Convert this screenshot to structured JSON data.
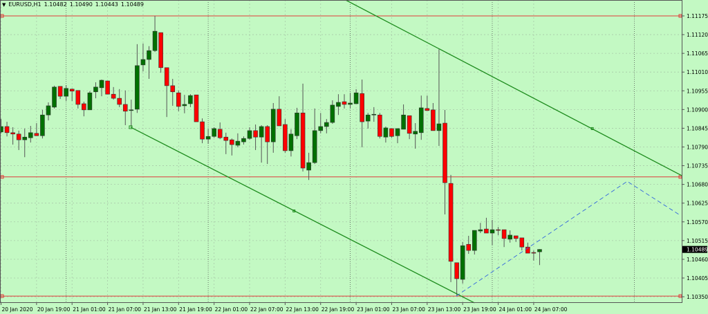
{
  "header": {
    "symbol": "EURUSD,H1",
    "open": "1.10482",
    "high": "1.10490",
    "low": "1.10443",
    "close": "1.10489"
  },
  "colors": {
    "background": "#c3f9c3",
    "bull": "#007000",
    "bear": "#ff0000",
    "trendline": "#1e8c1e",
    "hline": "#e03a3a",
    "projection": "#3366dd",
    "grid": "#a9c9a9"
  },
  "chart_data": {
    "type": "candlestick",
    "title": "",
    "ylim": [
      1.10322,
      1.11222
    ],
    "grid": true,
    "price_ticks": [
      "1.11175",
      "1.11120",
      "1.11065",
      "1.11010",
      "1.10955",
      "1.10900",
      "1.10845",
      "1.10790",
      "1.10735",
      "1.10680",
      "1.10625",
      "1.10570",
      "1.10515",
      "1.10460",
      "1.10405",
      "1.10350"
    ],
    "current_price": "1.10489",
    "time_labels": [
      "20 Jan 2020",
      "20 Jan 19:00",
      "21 Jan 01:00",
      "21 Jan 07:00",
      "21 Jan 13:00",
      "21 Jan 19:00",
      "22 Jan 01:00",
      "22 Jan 07:00",
      "22 Jan 13:00",
      "22 Jan 19:00",
      "23 Jan 01:00",
      "23 Jan 07:00",
      "23 Jan 13:00",
      "23 Jan 19:00",
      "24 Jan 01:00",
      "24 Jan 07:00"
    ],
    "candles_ohlc": [
      [
        1.10834,
        1.10872,
        1.1083,
        1.1085
      ],
      [
        1.1085,
        1.10864,
        1.10821,
        1.10832
      ],
      [
        1.10832,
        1.10848,
        1.10797,
        1.10828
      ],
      [
        1.10828,
        1.10838,
        1.10781,
        1.10811
      ],
      [
        1.10811,
        1.10844,
        1.1076,
        1.10819
      ],
      [
        1.10817,
        1.10852,
        1.10803,
        1.10832
      ],
      [
        1.1083,
        1.1086,
        1.10823,
        1.10823
      ],
      [
        1.10823,
        1.10899,
        1.10815,
        1.10884
      ],
      [
        1.10884,
        1.10921,
        1.10868,
        1.10911
      ],
      [
        1.10907,
        1.1097,
        1.10903,
        1.10966
      ],
      [
        1.10968,
        1.10968,
        1.10931,
        1.10939
      ],
      [
        1.10939,
        1.10972,
        1.10925,
        1.10962
      ],
      [
        1.1096,
        1.10962,
        1.10925,
        1.10954
      ],
      [
        1.10956,
        1.10956,
        1.10903,
        1.10915
      ],
      [
        1.10917,
        1.10923,
        1.1088,
        1.10899
      ],
      [
        1.10899,
        1.10954,
        1.10899,
        1.10949
      ],
      [
        1.10952,
        1.1098,
        1.10933,
        1.10966
      ],
      [
        1.10964,
        1.10988,
        1.10939,
        1.10986
      ],
      [
        1.10984,
        1.10984,
        1.10945,
        1.10945
      ],
      [
        1.10945,
        1.10966,
        1.10929,
        1.10933
      ],
      [
        1.10933,
        1.1096,
        1.10907,
        1.10915
      ],
      [
        1.10915,
        1.10956,
        1.10854,
        1.10895
      ],
      [
        1.10897,
        1.10929,
        1.1085,
        1.10899
      ],
      [
        1.10901,
        1.11092,
        1.1089,
        1.11029
      ],
      [
        1.11031,
        1.11094,
        1.11012,
        1.11047
      ],
      [
        1.11047,
        1.11086,
        1.1099,
        1.11073
      ],
      [
        1.11073,
        1.11175,
        1.11069,
        1.1113
      ],
      [
        1.11126,
        1.11126,
        1.11008,
        1.11023
      ],
      [
        1.11023,
        1.11023,
        1.10878,
        1.1097
      ],
      [
        1.1097,
        1.1099,
        1.10911,
        1.10952
      ],
      [
        1.10949,
        1.10956,
        1.10895,
        1.10909
      ],
      [
        1.10911,
        1.10943,
        1.10889,
        1.10915
      ],
      [
        1.10917,
        1.10945,
        1.10907,
        1.10941
      ],
      [
        1.10943,
        1.10943,
        1.10864,
        1.10864
      ],
      [
        1.10864,
        1.10874,
        1.10801,
        1.10813
      ],
      [
        1.10813,
        1.10842,
        1.10799,
        1.10821
      ],
      [
        1.10821,
        1.10848,
        1.10817,
        1.10844
      ],
      [
        1.10842,
        1.10862,
        1.10813,
        1.10817
      ],
      [
        1.10819,
        1.10832,
        1.10769,
        1.10809
      ],
      [
        1.10811,
        1.10815,
        1.10765,
        1.10797
      ],
      [
        1.10795,
        1.1083,
        1.10789,
        1.10807
      ],
      [
        1.10805,
        1.10821,
        1.10797,
        1.10815
      ],
      [
        1.10815,
        1.10848,
        1.10811,
        1.10838
      ],
      [
        1.10838,
        1.10856,
        1.10781,
        1.10819
      ],
      [
        1.10819,
        1.10854,
        1.10744,
        1.1085
      ],
      [
        1.1085,
        1.10854,
        1.1074,
        1.10805
      ],
      [
        1.10805,
        1.10919,
        1.10773,
        1.10901
      ],
      [
        1.10901,
        1.10939,
        1.10852,
        1.10852
      ],
      [
        1.10856,
        1.10872,
        1.10773,
        1.10779
      ],
      [
        1.10779,
        1.10842,
        1.10762,
        1.10828
      ],
      [
        1.10823,
        1.10905,
        1.10813,
        1.1089
      ],
      [
        1.1089,
        1.10976,
        1.10718,
        1.10728
      ],
      [
        1.10722,
        1.10773,
        1.10693,
        1.10744
      ],
      [
        1.10744,
        1.10903,
        1.1074,
        1.10838
      ],
      [
        1.10838,
        1.1089,
        1.1083,
        1.1085
      ],
      [
        1.1085,
        1.10872,
        1.1083,
        1.10862
      ],
      [
        1.10862,
        1.10927,
        1.10858,
        1.10913
      ],
      [
        1.10909,
        1.10945,
        1.10884,
        1.10921
      ],
      [
        1.10923,
        1.10945,
        1.10903,
        1.10915
      ],
      [
        1.10915,
        1.10949,
        1.10903,
        1.10919
      ],
      [
        1.10917,
        1.1096,
        1.10917,
        1.10949
      ],
      [
        1.10947,
        1.10988,
        1.10789,
        1.10864
      ],
      [
        1.10866,
        1.1089,
        1.10844,
        1.10884
      ],
      [
        1.10884,
        1.10907,
        1.10864,
        1.10886
      ],
      [
        1.10884,
        1.1089,
        1.10815,
        1.10821
      ],
      [
        1.10819,
        1.1085,
        1.10803,
        1.10846
      ],
      [
        1.10844,
        1.10844,
        1.10817,
        1.10821
      ],
      [
        1.10823,
        1.10844,
        1.10801,
        1.10844
      ],
      [
        1.10842,
        1.10915,
        1.10842,
        1.10884
      ],
      [
        1.10882,
        1.10882,
        1.10813,
        1.1083
      ],
      [
        1.10828,
        1.1086,
        1.10785,
        1.10836
      ],
      [
        1.10832,
        1.10941,
        1.10811,
        1.10905
      ],
      [
        1.10903,
        1.10941,
        1.10897,
        1.10897
      ],
      [
        1.10899,
        1.10919,
        1.10838,
        1.10838
      ],
      [
        1.10838,
        1.11077,
        1.10793,
        1.10858
      ],
      [
        1.1086,
        1.10899,
        1.10592,
        1.10685
      ],
      [
        1.10683,
        1.10708,
        1.10393,
        1.10454
      ],
      [
        1.1045,
        1.1045,
        1.10354,
        1.10403
      ],
      [
        1.10401,
        1.10511,
        1.10389,
        1.105
      ],
      [
        1.10504,
        1.10529,
        1.10476,
        1.10486
      ],
      [
        1.10486,
        1.10545,
        1.10474,
        1.10545
      ],
      [
        1.10543,
        1.10567,
        1.10537,
        1.10547
      ],
      [
        1.10549,
        1.10582,
        1.10537,
        1.10537
      ],
      [
        1.10537,
        1.10576,
        1.10502,
        1.10547
      ],
      [
        1.10547,
        1.10555,
        1.10531,
        1.10545
      ],
      [
        1.10547,
        1.10547,
        1.10496,
        1.10521
      ],
      [
        1.10519,
        1.10545,
        1.10509,
        1.10531
      ],
      [
        1.10529,
        1.10529,
        1.10511,
        1.10521
      ],
      [
        1.10523,
        1.10523,
        1.10486,
        1.10496
      ],
      [
        1.10496,
        1.10509,
        1.10478,
        1.10478
      ],
      [
        1.1048,
        1.10486,
        1.10456,
        1.10478
      ],
      [
        1.10482,
        1.1049,
        1.10443,
        1.10489
      ]
    ],
    "horizontal_levels": [
      1.11175,
      1.10702,
      1.10352
    ],
    "trendlines": [
      {
        "kind": "channel-upper",
        "points": [
          {
            "bar": 59.2,
            "price": 1.11222
          },
          {
            "bar": 116,
            "price": 1.10706
          }
        ],
        "handle": {
          "bar": 100.9,
          "price": 1.10844
        }
      },
      {
        "kind": "channel-lower",
        "points": [
          {
            "bar": 22.9,
            "price": 1.10848
          },
          {
            "bar": 81,
            "price": 1.10332
          }
        ],
        "handle": {
          "bar": 50.5,
          "price": 1.10602
        }
      }
    ],
    "projection": [
      {
        "bar": 77.9,
        "price": 1.10352
      },
      {
        "bar": 106.8,
        "price": 1.10689
      },
      {
        "bar": 115.7,
        "price": 1.1059
      }
    ]
  }
}
